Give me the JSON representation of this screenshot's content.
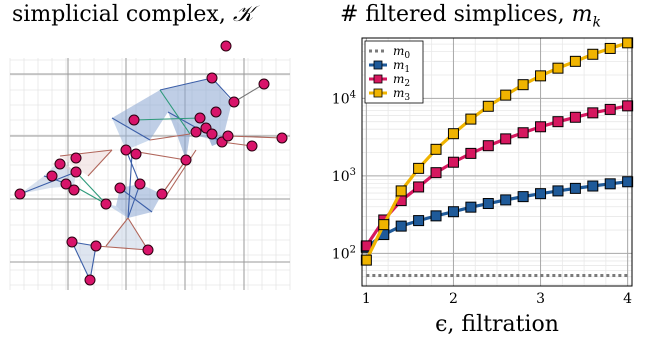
{
  "left_panel": {
    "title_text": "simplicial complex, ",
    "title_symbol": "𝒦"
  },
  "right_panel": {
    "title_text": "# filtered simplices, ",
    "title_symbol": "m",
    "title_subscript": "k"
  },
  "colors": {
    "m0": "#7a7a7a",
    "m1": "#1f5a99",
    "m2": "#d6175f",
    "m3": "#f0b400",
    "node": "#d8146a",
    "edge_brown": "#b0655a",
    "edge_blue": "#3c5fa8",
    "edge_green": "#2d9a7a",
    "face_blue": "#9bb3d6",
    "face_red": "#e7c9c9"
  },
  "chart_data": [
    {
      "type": "line",
      "title": "# filtered simplices, m_k",
      "xlabel": "ϵ, filtration",
      "ylabel": "",
      "xlim": [
        0.95,
        4.05
      ],
      "ylim": [
        38,
        60000
      ],
      "yscale": "log",
      "grid": true,
      "legend_position": "top-left",
      "xticks": [
        1,
        2,
        3,
        4
      ],
      "yticks": [
        100,
        1000,
        10000
      ],
      "ytick_labels": [
        {
          "base": "10",
          "exp": "2"
        },
        {
          "base": "10",
          "exp": "3"
        },
        {
          "base": "10",
          "exp": "4"
        }
      ],
      "x": [
        1.0,
        1.2,
        1.4,
        1.6,
        1.8,
        2.0,
        2.2,
        2.4,
        2.6,
        2.8,
        3.0,
        3.2,
        3.4,
        3.6,
        3.8,
        4.0
      ],
      "series": [
        {
          "name": "m",
          "subscript": "0",
          "style": "dotted",
          "marker": "none",
          "values": [
            52,
            52,
            52,
            52,
            52,
            52,
            52,
            52,
            52,
            52,
            52,
            52,
            52,
            52,
            52,
            52
          ]
        },
        {
          "name": "m",
          "subscript": "1",
          "style": "solid",
          "marker": "square",
          "values": [
            120,
            175,
            225,
            265,
            305,
            345,
            395,
            440,
            490,
            540,
            590,
            640,
            690,
            740,
            790,
            840
          ]
        },
        {
          "name": "m",
          "subscript": "2",
          "style": "solid",
          "marker": "square",
          "values": [
            125,
            270,
            480,
            720,
            1100,
            1500,
            1950,
            2450,
            3000,
            3600,
            4300,
            5000,
            5700,
            6500,
            7200,
            8000
          ]
        },
        {
          "name": "m",
          "subscript": "3",
          "style": "solid",
          "marker": "square",
          "values": [
            82,
            235,
            640,
            1250,
            2200,
            3500,
            5400,
            7900,
            11000,
            15000,
            19500,
            24500,
            30000,
            37000,
            44000,
            52000
          ]
        }
      ]
    }
  ]
}
